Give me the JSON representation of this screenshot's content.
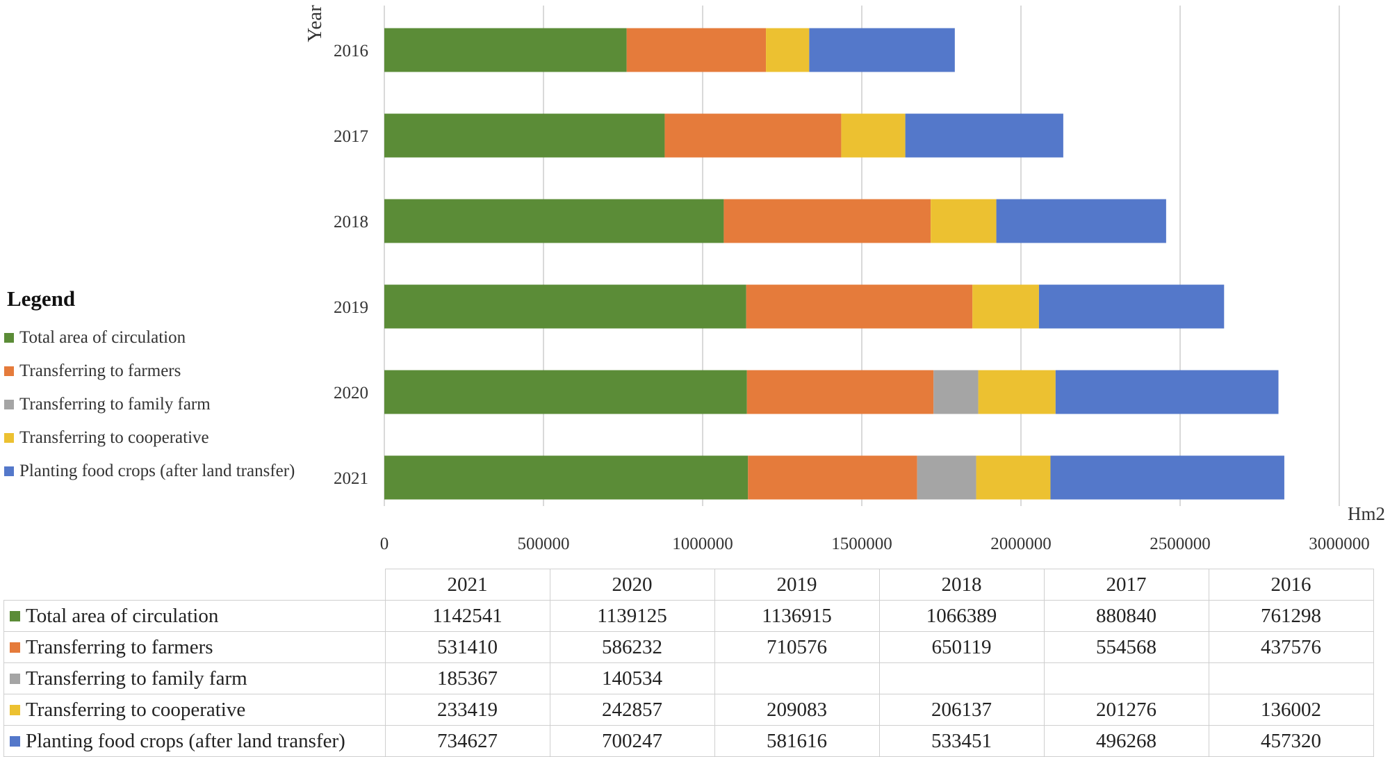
{
  "chart_data": {
    "type": "bar",
    "orientation": "horizontal",
    "stacked": true,
    "categories": [
      "2016",
      "2017",
      "2018",
      "2019",
      "2020",
      "2021"
    ],
    "ylabel": "Year",
    "xlabel": "Hm2",
    "xlim": [
      0,
      3000000
    ],
    "xticks": [
      "0",
      "500000",
      "1000000",
      "1500000",
      "2000000",
      "2500000",
      "3000000"
    ],
    "grid": true,
    "legend_title": "Legend",
    "legend_position": "left",
    "series": [
      {
        "name": "Total area of circulation",
        "color": "#5b8c37",
        "values": [
          761298,
          880840,
          1066389,
          1136915,
          1139125,
          1142541
        ]
      },
      {
        "name": "Transferring to farmers",
        "color": "#e57b3b",
        "values": [
          437576,
          554568,
          650119,
          710576,
          586232,
          531410
        ]
      },
      {
        "name": "Transferring to family farm",
        "color": "#a5a5a5",
        "values": [
          null,
          null,
          null,
          null,
          140534,
          185367
        ]
      },
      {
        "name": "Transferring to cooperative",
        "color": "#ecc131",
        "values": [
          136002,
          201276,
          206137,
          209083,
          242857,
          233419
        ]
      },
      {
        "name": "Planting food crops (after land transfer)",
        "color": "#5478ca",
        "values": [
          457320,
          496268,
          533451,
          581616,
          700247,
          734627
        ]
      }
    ]
  },
  "table": {
    "columns": [
      "2021",
      "2020",
      "2019",
      "2018",
      "2017",
      "2016"
    ],
    "rows": [
      {
        "label": "Total area of circulation",
        "color": "#5b8c37",
        "values": [
          "1142541",
          "1139125",
          "1136915",
          "1066389",
          "880840",
          "761298"
        ]
      },
      {
        "label": "Transferring to farmers",
        "color": "#e57b3b",
        "values": [
          "531410",
          "586232",
          "710576",
          "650119",
          "554568",
          "437576"
        ]
      },
      {
        "label": "Transferring to family farm",
        "color": "#a5a5a5",
        "values": [
          "185367",
          "140534",
          "",
          "",
          "",
          ""
        ]
      },
      {
        "label": "Transferring to cooperative",
        "color": "#ecc131",
        "values": [
          "233419",
          "242857",
          "209083",
          "206137",
          "201276",
          "136002"
        ]
      },
      {
        "label": "Planting food crops (after land transfer)",
        "color": "#5478ca",
        "values": [
          "734627",
          "700247",
          "581616",
          "533451",
          "496268",
          "457320"
        ]
      }
    ]
  }
}
